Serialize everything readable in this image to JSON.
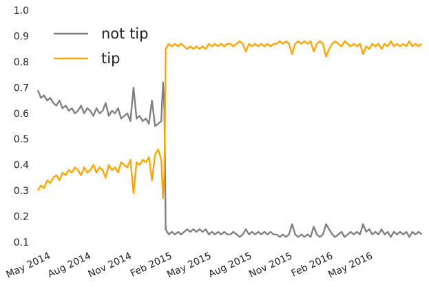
{
  "chart_data": {
    "type": "line",
    "title": "",
    "xlabel": "",
    "ylabel": "",
    "xlim": [
      "2014-04-01",
      "2016-08-20"
    ],
    "ylim": [
      0.1,
      1.0
    ],
    "grid": false,
    "legend_position": "top-left",
    "x_ticks": [
      {
        "date": "2014-05-01",
        "label": "May 2014"
      },
      {
        "date": "2014-08-01",
        "label": "Aug 2014"
      },
      {
        "date": "2014-11-01",
        "label": "Nov 2014"
      },
      {
        "date": "2015-02-01",
        "label": "Feb 2015"
      },
      {
        "date": "2015-05-01",
        "label": "May 2015"
      },
      {
        "date": "2015-08-01",
        "label": "Aug 2015"
      },
      {
        "date": "2015-11-01",
        "label": "Nov 2015"
      },
      {
        "date": "2016-02-01",
        "label": "Feb 2016"
      },
      {
        "date": "2016-05-01",
        "label": "May 2016"
      }
    ],
    "y_ticks": [
      {
        "value": 0.1,
        "label": "0.1"
      },
      {
        "value": 0.2,
        "label": "0.2"
      },
      {
        "value": 0.3,
        "label": "0.3"
      },
      {
        "value": 0.4,
        "label": "0.4"
      },
      {
        "value": 0.5,
        "label": "0.5"
      },
      {
        "value": 0.6,
        "label": "0.6"
      },
      {
        "value": 0.7,
        "label": "0.7"
      },
      {
        "value": 0.8,
        "label": "0.8"
      },
      {
        "value": 0.9,
        "label": "0.9"
      },
      {
        "value": 1.0,
        "label": "1.0"
      }
    ],
    "series": [
      {
        "name": "not tip",
        "color": "#808080",
        "points": [
          [
            "2014-04-01",
            0.69
          ],
          [
            "2014-04-08",
            0.66
          ],
          [
            "2014-04-15",
            0.67
          ],
          [
            "2014-04-22",
            0.65
          ],
          [
            "2014-04-29",
            0.66
          ],
          [
            "2014-05-06",
            0.64
          ],
          [
            "2014-05-13",
            0.63
          ],
          [
            "2014-05-20",
            0.65
          ],
          [
            "2014-05-27",
            0.62
          ],
          [
            "2014-06-03",
            0.63
          ],
          [
            "2014-06-10",
            0.61
          ],
          [
            "2014-06-17",
            0.62
          ],
          [
            "2014-06-24",
            0.6
          ],
          [
            "2014-07-01",
            0.61
          ],
          [
            "2014-07-08",
            0.63
          ],
          [
            "2014-07-15",
            0.6
          ],
          [
            "2014-07-22",
            0.62
          ],
          [
            "2014-07-29",
            0.61
          ],
          [
            "2014-08-05",
            0.59
          ],
          [
            "2014-08-12",
            0.62
          ],
          [
            "2014-08-19",
            0.6
          ],
          [
            "2014-08-26",
            0.61
          ],
          [
            "2014-09-02",
            0.64
          ],
          [
            "2014-09-09",
            0.59
          ],
          [
            "2014-09-16",
            0.61
          ],
          [
            "2014-09-23",
            0.6
          ],
          [
            "2014-09-30",
            0.62
          ],
          [
            "2014-10-07",
            0.58
          ],
          [
            "2014-10-14",
            0.59
          ],
          [
            "2014-10-21",
            0.6
          ],
          [
            "2014-10-28",
            0.57
          ],
          [
            "2014-11-04",
            0.7
          ],
          [
            "2014-11-11",
            0.58
          ],
          [
            "2014-11-18",
            0.59
          ],
          [
            "2014-11-25",
            0.57
          ],
          [
            "2014-12-02",
            0.58
          ],
          [
            "2014-12-09",
            0.56
          ],
          [
            "2014-12-16",
            0.65
          ],
          [
            "2014-12-23",
            0.55
          ],
          [
            "2014-12-30",
            0.56
          ],
          [
            "2015-01-06",
            0.57
          ],
          [
            "2015-01-10",
            0.72
          ],
          [
            "2015-01-13",
            0.62
          ],
          [
            "2015-01-15",
            0.35
          ],
          [
            "2015-01-16",
            0.15
          ],
          [
            "2015-01-23",
            0.13
          ],
          [
            "2015-01-30",
            0.14
          ],
          [
            "2015-02-06",
            0.13
          ],
          [
            "2015-02-13",
            0.14
          ],
          [
            "2015-02-20",
            0.13
          ],
          [
            "2015-02-27",
            0.14
          ],
          [
            "2015-03-06",
            0.15
          ],
          [
            "2015-03-13",
            0.14
          ],
          [
            "2015-03-20",
            0.15
          ],
          [
            "2015-03-27",
            0.14
          ],
          [
            "2015-04-03",
            0.15
          ],
          [
            "2015-04-10",
            0.14
          ],
          [
            "2015-04-17",
            0.15
          ],
          [
            "2015-04-24",
            0.13
          ],
          [
            "2015-05-01",
            0.14
          ],
          [
            "2015-05-08",
            0.13
          ],
          [
            "2015-05-15",
            0.14
          ],
          [
            "2015-05-22",
            0.13
          ],
          [
            "2015-05-29",
            0.14
          ],
          [
            "2015-06-05",
            0.13
          ],
          [
            "2015-06-12",
            0.13
          ],
          [
            "2015-06-19",
            0.14
          ],
          [
            "2015-06-26",
            0.13
          ],
          [
            "2015-07-03",
            0.12
          ],
          [
            "2015-07-10",
            0.13
          ],
          [
            "2015-07-17",
            0.15
          ],
          [
            "2015-07-24",
            0.13
          ],
          [
            "2015-07-31",
            0.14
          ],
          [
            "2015-08-07",
            0.13
          ],
          [
            "2015-08-14",
            0.14
          ],
          [
            "2015-08-21",
            0.13
          ],
          [
            "2015-08-28",
            0.14
          ],
          [
            "2015-09-04",
            0.13
          ],
          [
            "2015-09-11",
            0.14
          ],
          [
            "2015-09-18",
            0.13
          ],
          [
            "2015-09-25",
            0.13
          ],
          [
            "2015-10-02",
            0.12
          ],
          [
            "2015-10-09",
            0.13
          ],
          [
            "2015-10-16",
            0.12
          ],
          [
            "2015-10-23",
            0.13
          ],
          [
            "2015-10-30",
            0.17
          ],
          [
            "2015-11-06",
            0.13
          ],
          [
            "2015-11-13",
            0.12
          ],
          [
            "2015-11-20",
            0.13
          ],
          [
            "2015-11-27",
            0.12
          ],
          [
            "2015-12-04",
            0.13
          ],
          [
            "2015-12-11",
            0.12
          ],
          [
            "2015-12-18",
            0.16
          ],
          [
            "2015-12-25",
            0.13
          ],
          [
            "2016-01-01",
            0.12
          ],
          [
            "2016-01-08",
            0.13
          ],
          [
            "2016-01-15",
            0.17
          ],
          [
            "2016-01-22",
            0.15
          ],
          [
            "2016-01-29",
            0.13
          ],
          [
            "2016-02-05",
            0.12
          ],
          [
            "2016-02-12",
            0.13
          ],
          [
            "2016-02-19",
            0.14
          ],
          [
            "2016-02-26",
            0.12
          ],
          [
            "2016-03-04",
            0.13
          ],
          [
            "2016-03-11",
            0.14
          ],
          [
            "2016-03-18",
            0.13
          ],
          [
            "2016-03-25",
            0.14
          ],
          [
            "2016-04-01",
            0.13
          ],
          [
            "2016-04-08",
            0.17
          ],
          [
            "2016-04-15",
            0.14
          ],
          [
            "2016-04-22",
            0.15
          ],
          [
            "2016-04-29",
            0.13
          ],
          [
            "2016-05-06",
            0.14
          ],
          [
            "2016-05-13",
            0.13
          ],
          [
            "2016-05-20",
            0.15
          ],
          [
            "2016-05-27",
            0.13
          ],
          [
            "2016-06-03",
            0.14
          ],
          [
            "2016-06-10",
            0.12
          ],
          [
            "2016-06-17",
            0.14
          ],
          [
            "2016-06-24",
            0.13
          ],
          [
            "2016-07-01",
            0.14
          ],
          [
            "2016-07-08",
            0.13
          ],
          [
            "2016-07-15",
            0.14
          ],
          [
            "2016-07-22",
            0.12
          ],
          [
            "2016-07-29",
            0.14
          ],
          [
            "2016-08-05",
            0.13
          ],
          [
            "2016-08-12",
            0.14
          ],
          [
            "2016-08-19",
            0.13
          ]
        ]
      },
      {
        "name": "tip",
        "color": "#FFA500",
        "points": [
          [
            "2014-04-01",
            0.3
          ],
          [
            "2014-04-08",
            0.32
          ],
          [
            "2014-04-15",
            0.31
          ],
          [
            "2014-04-22",
            0.34
          ],
          [
            "2014-04-29",
            0.33
          ],
          [
            "2014-05-06",
            0.35
          ],
          [
            "2014-05-13",
            0.36
          ],
          [
            "2014-05-20",
            0.34
          ],
          [
            "2014-05-27",
            0.37
          ],
          [
            "2014-06-03",
            0.36
          ],
          [
            "2014-06-10",
            0.38
          ],
          [
            "2014-06-17",
            0.37
          ],
          [
            "2014-06-24",
            0.39
          ],
          [
            "2014-07-01",
            0.38
          ],
          [
            "2014-07-08",
            0.36
          ],
          [
            "2014-07-15",
            0.39
          ],
          [
            "2014-07-22",
            0.37
          ],
          [
            "2014-07-29",
            0.38
          ],
          [
            "2014-08-05",
            0.4
          ],
          [
            "2014-08-12",
            0.37
          ],
          [
            "2014-08-19",
            0.39
          ],
          [
            "2014-08-26",
            0.38
          ],
          [
            "2014-09-02",
            0.35
          ],
          [
            "2014-09-09",
            0.4
          ],
          [
            "2014-09-16",
            0.38
          ],
          [
            "2014-09-23",
            0.39
          ],
          [
            "2014-09-30",
            0.37
          ],
          [
            "2014-10-07",
            0.41
          ],
          [
            "2014-10-14",
            0.4
          ],
          [
            "2014-10-21",
            0.39
          ],
          [
            "2014-10-28",
            0.42
          ],
          [
            "2014-11-04",
            0.29
          ],
          [
            "2014-11-11",
            0.41
          ],
          [
            "2014-11-18",
            0.4
          ],
          [
            "2014-11-25",
            0.42
          ],
          [
            "2014-12-02",
            0.41
          ],
          [
            "2014-12-09",
            0.43
          ],
          [
            "2014-12-16",
            0.34
          ],
          [
            "2014-12-23",
            0.44
          ],
          [
            "2014-12-30",
            0.46
          ],
          [
            "2015-01-06",
            0.42
          ],
          [
            "2015-01-10",
            0.27
          ],
          [
            "2015-01-13",
            0.37
          ],
          [
            "2015-01-15",
            0.65
          ],
          [
            "2015-01-16",
            0.85
          ],
          [
            "2015-01-23",
            0.87
          ],
          [
            "2015-01-30",
            0.86
          ],
          [
            "2015-02-06",
            0.87
          ],
          [
            "2015-02-13",
            0.86
          ],
          [
            "2015-02-20",
            0.87
          ],
          [
            "2015-02-27",
            0.86
          ],
          [
            "2015-03-06",
            0.85
          ],
          [
            "2015-03-13",
            0.86
          ],
          [
            "2015-03-20",
            0.85
          ],
          [
            "2015-03-27",
            0.86
          ],
          [
            "2015-04-03",
            0.85
          ],
          [
            "2015-04-10",
            0.86
          ],
          [
            "2015-04-17",
            0.85
          ],
          [
            "2015-04-24",
            0.87
          ],
          [
            "2015-05-01",
            0.86
          ],
          [
            "2015-05-08",
            0.87
          ],
          [
            "2015-05-15",
            0.86
          ],
          [
            "2015-05-22",
            0.87
          ],
          [
            "2015-05-29",
            0.86
          ],
          [
            "2015-06-05",
            0.87
          ],
          [
            "2015-06-12",
            0.87
          ],
          [
            "2015-06-19",
            0.86
          ],
          [
            "2015-06-26",
            0.87
          ],
          [
            "2015-07-03",
            0.88
          ],
          [
            "2015-07-10",
            0.87
          ],
          [
            "2015-07-17",
            0.84
          ],
          [
            "2015-07-24",
            0.87
          ],
          [
            "2015-07-31",
            0.86
          ],
          [
            "2015-08-07",
            0.87
          ],
          [
            "2015-08-14",
            0.86
          ],
          [
            "2015-08-21",
            0.87
          ],
          [
            "2015-08-28",
            0.86
          ],
          [
            "2015-09-04",
            0.87
          ],
          [
            "2015-09-11",
            0.86
          ],
          [
            "2015-09-18",
            0.87
          ],
          [
            "2015-09-25",
            0.87
          ],
          [
            "2015-10-02",
            0.88
          ],
          [
            "2015-10-09",
            0.87
          ],
          [
            "2015-10-16",
            0.88
          ],
          [
            "2015-10-23",
            0.87
          ],
          [
            "2015-10-30",
            0.83
          ],
          [
            "2015-11-06",
            0.87
          ],
          [
            "2015-11-13",
            0.88
          ],
          [
            "2015-11-20",
            0.87
          ],
          [
            "2015-11-27",
            0.88
          ],
          [
            "2015-12-04",
            0.87
          ],
          [
            "2015-12-11",
            0.88
          ],
          [
            "2015-12-18",
            0.84
          ],
          [
            "2015-12-25",
            0.87
          ],
          [
            "2016-01-01",
            0.88
          ],
          [
            "2016-01-08",
            0.87
          ],
          [
            "2016-01-15",
            0.82
          ],
          [
            "2016-01-22",
            0.85
          ],
          [
            "2016-01-29",
            0.87
          ],
          [
            "2016-02-05",
            0.88
          ],
          [
            "2016-02-12",
            0.87
          ],
          [
            "2016-02-19",
            0.86
          ],
          [
            "2016-02-26",
            0.88
          ],
          [
            "2016-03-04",
            0.87
          ],
          [
            "2016-03-11",
            0.86
          ],
          [
            "2016-03-18",
            0.87
          ],
          [
            "2016-03-25",
            0.86
          ],
          [
            "2016-04-01",
            0.87
          ],
          [
            "2016-04-08",
            0.83
          ],
          [
            "2016-04-15",
            0.86
          ],
          [
            "2016-04-22",
            0.85
          ],
          [
            "2016-04-29",
            0.87
          ],
          [
            "2016-05-06",
            0.86
          ],
          [
            "2016-05-13",
            0.87
          ],
          [
            "2016-05-20",
            0.85
          ],
          [
            "2016-05-27",
            0.87
          ],
          [
            "2016-06-03",
            0.86
          ],
          [
            "2016-06-10",
            0.88
          ],
          [
            "2016-06-17",
            0.86
          ],
          [
            "2016-06-24",
            0.87
          ],
          [
            "2016-07-01",
            0.86
          ],
          [
            "2016-07-08",
            0.87
          ],
          [
            "2016-07-15",
            0.86
          ],
          [
            "2016-07-22",
            0.88
          ],
          [
            "2016-07-29",
            0.86
          ],
          [
            "2016-08-05",
            0.87
          ],
          [
            "2016-08-12",
            0.86
          ],
          [
            "2016-08-19",
            0.87
          ]
        ]
      }
    ]
  }
}
